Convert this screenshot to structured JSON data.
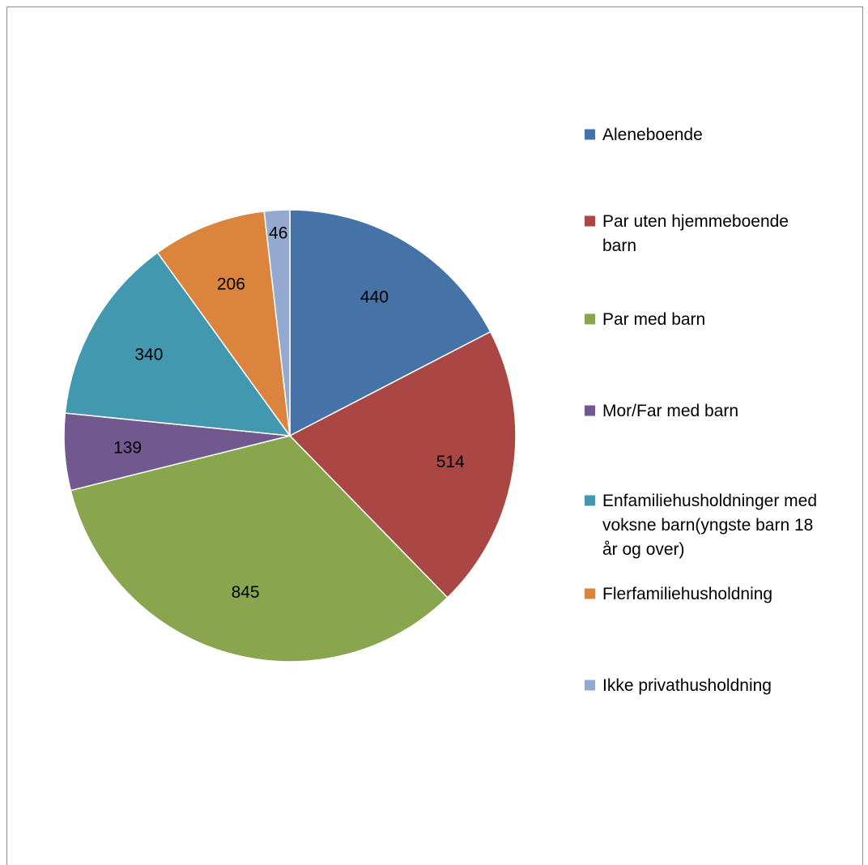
{
  "chart_data": {
    "type": "pie",
    "title": "",
    "start_angle_deg": 0,
    "direction": "clockwise",
    "legend_position": "right",
    "series": [
      {
        "name": "Aleneboende",
        "value": 440,
        "label": "440",
        "color": "#4572a7",
        "legend_lines": [
          "Aleneboende"
        ]
      },
      {
        "name": "Par uten hjemmeboende barn",
        "value": 514,
        "label": "514",
        "color": "#aa4643",
        "legend_lines": [
          "Par uten hjemmeboende",
          "barn"
        ]
      },
      {
        "name": "Par med barn",
        "value": 845,
        "label": "845",
        "color": "#89a54e",
        "legend_lines": [
          "Par med barn"
        ]
      },
      {
        "name": "Mor/Far med barn",
        "value": 139,
        "label": "139",
        "color": "#71588f",
        "legend_lines": [
          "Mor/Far med barn"
        ]
      },
      {
        "name": "Enfamiliehusholdninger med voksne barn(yngste barn 18 år og over)",
        "value": 340,
        "label": "340",
        "color": "#4198af",
        "legend_lines": [
          "Enfamiliehusholdninger med",
          "voksne barn(yngste barn 18",
          "år og over)"
        ]
      },
      {
        "name": "Flerfamiliehusholdning",
        "value": 206,
        "label": "206",
        "color": "#db843d",
        "legend_lines": [
          "Flerfamiliehusholdning"
        ]
      },
      {
        "name": "Ikke privathusholdning",
        "value": 46,
        "label": "46",
        "color": "#93a9cf",
        "legend_lines": [
          "Ikke privathusholdning"
        ]
      }
    ]
  }
}
